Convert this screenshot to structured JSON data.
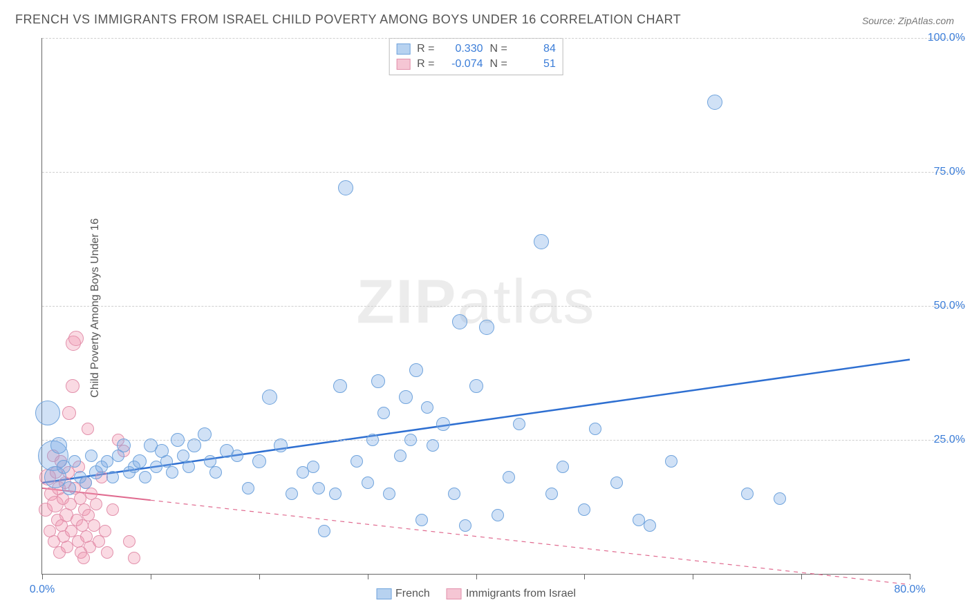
{
  "title": "FRENCH VS IMMIGRANTS FROM ISRAEL CHILD POVERTY AMONG BOYS UNDER 16 CORRELATION CHART",
  "source_label": "Source:",
  "source_value": "ZipAtlas.com",
  "ylabel": "Child Poverty Among Boys Under 16",
  "watermark_a": "ZIP",
  "watermark_b": "atlas",
  "chart": {
    "type": "scatter",
    "xlim": [
      0,
      80
    ],
    "ylim": [
      0,
      100
    ],
    "ytick_step": 25,
    "ytick_labels": [
      "25.0%",
      "50.0%",
      "75.0%",
      "100.0%"
    ],
    "xtick_positions": [
      0,
      10,
      20,
      30,
      40,
      50,
      60,
      70,
      80
    ],
    "xtick_labels_shown": {
      "0": "0.0%",
      "80": "80.0%"
    },
    "grid_color": "#cfcfcf",
    "axis_color": "#666666",
    "background_color": "#ffffff",
    "label_color": "#3b7dd8",
    "series": [
      {
        "name": "French",
        "color_fill": "rgba(120,170,230,0.35)",
        "color_stroke": "#6fa3dc",
        "trend": {
          "color": "#2e6fd1",
          "width": 2.5,
          "y_at_x0": 17,
          "y_at_x80": 40,
          "solid_until_x": 80,
          "dashed": false
        },
        "stats": {
          "R": "0.330",
          "N": "84"
        }
      },
      {
        "name": "Immigrants from Israel",
        "color_fill": "rgba(240,150,175,0.35)",
        "color_stroke": "#e290ab",
        "trend": {
          "color": "#e06a8f",
          "width": 2,
          "y_at_x0": 16,
          "y_at_x80": -2,
          "solid_until_x": 10,
          "dashed": true
        },
        "stats": {
          "R": "-0.074",
          "N": "51"
        }
      }
    ],
    "legend_swatch_colors": {
      "french_fill": "#b7d2f0",
      "french_border": "#6fa3dc",
      "israel_fill": "#f5c6d4",
      "israel_border": "#e290ab"
    },
    "points_blue": [
      {
        "x": 0.5,
        "y": 30,
        "r": 18
      },
      {
        "x": 1,
        "y": 22,
        "r": 22
      },
      {
        "x": 1.2,
        "y": 18,
        "r": 16
      },
      {
        "x": 1.5,
        "y": 24,
        "r": 12
      },
      {
        "x": 2,
        "y": 20,
        "r": 10
      },
      {
        "x": 2.5,
        "y": 16,
        "r": 10
      },
      {
        "x": 3,
        "y": 21,
        "r": 9
      },
      {
        "x": 3.5,
        "y": 18,
        "r": 9
      },
      {
        "x": 4,
        "y": 17,
        "r": 9
      },
      {
        "x": 4.5,
        "y": 22,
        "r": 9
      },
      {
        "x": 5,
        "y": 19,
        "r": 10
      },
      {
        "x": 5.5,
        "y": 20,
        "r": 9
      },
      {
        "x": 6,
        "y": 21,
        "r": 9
      },
      {
        "x": 6.5,
        "y": 18,
        "r": 9
      },
      {
        "x": 7,
        "y": 22,
        "r": 9
      },
      {
        "x": 7.5,
        "y": 24,
        "r": 10
      },
      {
        "x": 8,
        "y": 19,
        "r": 9
      },
      {
        "x": 8.5,
        "y": 20,
        "r": 9
      },
      {
        "x": 9,
        "y": 21,
        "r": 10
      },
      {
        "x": 9.5,
        "y": 18,
        "r": 9
      },
      {
        "x": 10,
        "y": 24,
        "r": 10
      },
      {
        "x": 10.5,
        "y": 20,
        "r": 9
      },
      {
        "x": 11,
        "y": 23,
        "r": 10
      },
      {
        "x": 11.5,
        "y": 21,
        "r": 9
      },
      {
        "x": 12,
        "y": 19,
        "r": 9
      },
      {
        "x": 12.5,
        "y": 25,
        "r": 10
      },
      {
        "x": 13,
        "y": 22,
        "r": 9
      },
      {
        "x": 13.5,
        "y": 20,
        "r": 9
      },
      {
        "x": 14,
        "y": 24,
        "r": 10
      },
      {
        "x": 15,
        "y": 26,
        "r": 10
      },
      {
        "x": 15.5,
        "y": 21,
        "r": 9
      },
      {
        "x": 16,
        "y": 19,
        "r": 9
      },
      {
        "x": 17,
        "y": 23,
        "r": 10
      },
      {
        "x": 18,
        "y": 22,
        "r": 9
      },
      {
        "x": 19,
        "y": 16,
        "r": 9
      },
      {
        "x": 20,
        "y": 21,
        "r": 10
      },
      {
        "x": 21,
        "y": 33,
        "r": 11
      },
      {
        "x": 22,
        "y": 24,
        "r": 10
      },
      {
        "x": 23,
        "y": 15,
        "r": 9
      },
      {
        "x": 24,
        "y": 19,
        "r": 9
      },
      {
        "x": 25,
        "y": 20,
        "r": 9
      },
      {
        "x": 25.5,
        "y": 16,
        "r": 9
      },
      {
        "x": 26,
        "y": 8,
        "r": 9
      },
      {
        "x": 27,
        "y": 15,
        "r": 9
      },
      {
        "x": 27.5,
        "y": 35,
        "r": 10
      },
      {
        "x": 28,
        "y": 72,
        "r": 11
      },
      {
        "x": 29,
        "y": 21,
        "r": 9
      },
      {
        "x": 30,
        "y": 17,
        "r": 9
      },
      {
        "x": 30.5,
        "y": 25,
        "r": 9
      },
      {
        "x": 31,
        "y": 36,
        "r": 10
      },
      {
        "x": 31.5,
        "y": 30,
        "r": 9
      },
      {
        "x": 32,
        "y": 15,
        "r": 9
      },
      {
        "x": 33,
        "y": 22,
        "r": 9
      },
      {
        "x": 33.5,
        "y": 33,
        "r": 10
      },
      {
        "x": 34,
        "y": 25,
        "r": 9
      },
      {
        "x": 34.5,
        "y": 38,
        "r": 10
      },
      {
        "x": 35,
        "y": 10,
        "r": 9
      },
      {
        "x": 35.5,
        "y": 31,
        "r": 9
      },
      {
        "x": 36,
        "y": 24,
        "r": 9
      },
      {
        "x": 37,
        "y": 28,
        "r": 10
      },
      {
        "x": 38,
        "y": 15,
        "r": 9
      },
      {
        "x": 38.5,
        "y": 47,
        "r": 11
      },
      {
        "x": 39,
        "y": 9,
        "r": 9
      },
      {
        "x": 40,
        "y": 35,
        "r": 10
      },
      {
        "x": 41,
        "y": 46,
        "r": 11
      },
      {
        "x": 42,
        "y": 11,
        "r": 9
      },
      {
        "x": 43,
        "y": 18,
        "r": 9
      },
      {
        "x": 44,
        "y": 28,
        "r": 9
      },
      {
        "x": 46,
        "y": 62,
        "r": 11
      },
      {
        "x": 47,
        "y": 15,
        "r": 9
      },
      {
        "x": 48,
        "y": 20,
        "r": 9
      },
      {
        "x": 50,
        "y": 12,
        "r": 9
      },
      {
        "x": 51,
        "y": 27,
        "r": 9
      },
      {
        "x": 53,
        "y": 17,
        "r": 9
      },
      {
        "x": 55,
        "y": 10,
        "r": 9
      },
      {
        "x": 56,
        "y": 9,
        "r": 9
      },
      {
        "x": 58,
        "y": 21,
        "r": 9
      },
      {
        "x": 62,
        "y": 88,
        "r": 11
      },
      {
        "x": 65,
        "y": 15,
        "r": 9
      },
      {
        "x": 68,
        "y": 14,
        "r": 9
      }
    ],
    "points_pink": [
      {
        "x": 0.3,
        "y": 12,
        "r": 10
      },
      {
        "x": 0.5,
        "y": 18,
        "r": 12
      },
      {
        "x": 0.7,
        "y": 8,
        "r": 9
      },
      {
        "x": 0.8,
        "y": 15,
        "r": 10
      },
      {
        "x": 1,
        "y": 22,
        "r": 9
      },
      {
        "x": 1.1,
        "y": 6,
        "r": 9
      },
      {
        "x": 1.2,
        "y": 13,
        "r": 12
      },
      {
        "x": 1.3,
        "y": 19,
        "r": 9
      },
      {
        "x": 1.4,
        "y": 10,
        "r": 9
      },
      {
        "x": 1.5,
        "y": 16,
        "r": 10
      },
      {
        "x": 1.6,
        "y": 4,
        "r": 9
      },
      {
        "x": 1.7,
        "y": 21,
        "r": 9
      },
      {
        "x": 1.8,
        "y": 9,
        "r": 9
      },
      {
        "x": 1.9,
        "y": 14,
        "r": 9
      },
      {
        "x": 2,
        "y": 7,
        "r": 9
      },
      {
        "x": 2.1,
        "y": 17,
        "r": 9
      },
      {
        "x": 2.2,
        "y": 11,
        "r": 10
      },
      {
        "x": 2.3,
        "y": 5,
        "r": 9
      },
      {
        "x": 2.4,
        "y": 19,
        "r": 9
      },
      {
        "x": 2.5,
        "y": 30,
        "r": 10
      },
      {
        "x": 2.6,
        "y": 13,
        "r": 9
      },
      {
        "x": 2.7,
        "y": 8,
        "r": 9
      },
      {
        "x": 2.8,
        "y": 35,
        "r": 10
      },
      {
        "x": 2.9,
        "y": 43,
        "r": 11
      },
      {
        "x": 3,
        "y": 16,
        "r": 9
      },
      {
        "x": 3.1,
        "y": 44,
        "r": 11
      },
      {
        "x": 3.2,
        "y": 10,
        "r": 9
      },
      {
        "x": 3.3,
        "y": 6,
        "r": 9
      },
      {
        "x": 3.4,
        "y": 20,
        "r": 9
      },
      {
        "x": 3.5,
        "y": 14,
        "r": 9
      },
      {
        "x": 3.6,
        "y": 4,
        "r": 9
      },
      {
        "x": 3.7,
        "y": 9,
        "r": 9
      },
      {
        "x": 3.8,
        "y": 3,
        "r": 9
      },
      {
        "x": 3.9,
        "y": 12,
        "r": 9
      },
      {
        "x": 4,
        "y": 17,
        "r": 9
      },
      {
        "x": 4.1,
        "y": 7,
        "r": 9
      },
      {
        "x": 4.2,
        "y": 27,
        "r": 9
      },
      {
        "x": 4.3,
        "y": 11,
        "r": 9
      },
      {
        "x": 4.4,
        "y": 5,
        "r": 9
      },
      {
        "x": 4.5,
        "y": 15,
        "r": 9
      },
      {
        "x": 4.8,
        "y": 9,
        "r": 9
      },
      {
        "x": 5,
        "y": 13,
        "r": 9
      },
      {
        "x": 5.2,
        "y": 6,
        "r": 9
      },
      {
        "x": 5.5,
        "y": 18,
        "r": 9
      },
      {
        "x": 5.8,
        "y": 8,
        "r": 9
      },
      {
        "x": 6,
        "y": 4,
        "r": 9
      },
      {
        "x": 6.5,
        "y": 12,
        "r": 9
      },
      {
        "x": 7,
        "y": 25,
        "r": 9
      },
      {
        "x": 7.5,
        "y": 23,
        "r": 9
      },
      {
        "x": 8,
        "y": 6,
        "r": 9
      },
      {
        "x": 8.5,
        "y": 3,
        "r": 9
      }
    ]
  }
}
